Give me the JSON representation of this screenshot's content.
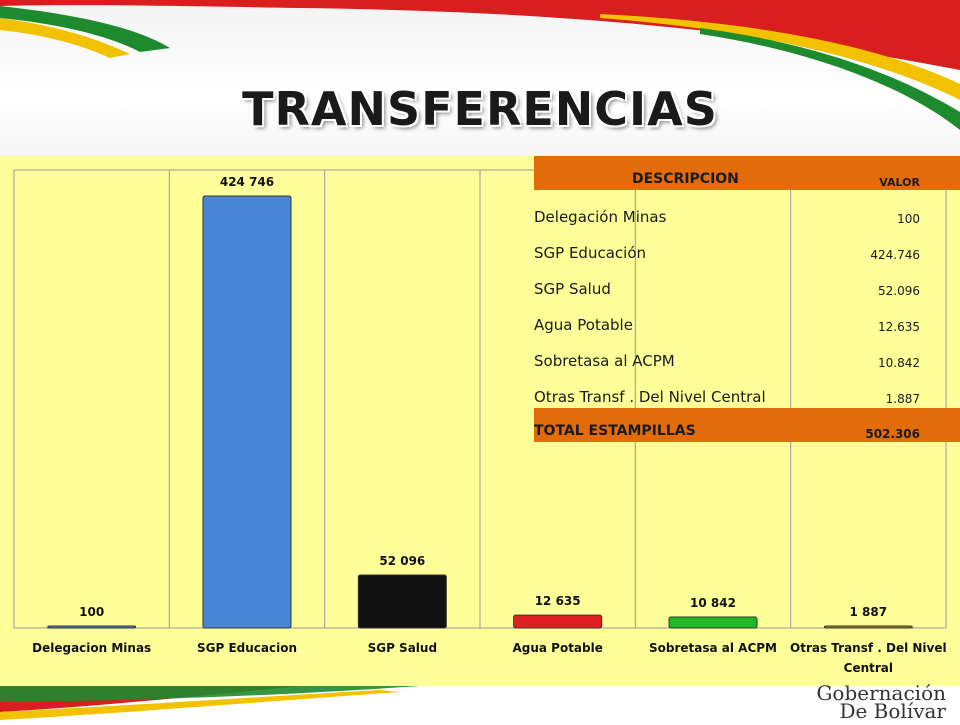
{
  "title": "TRANSFERENCIAS",
  "branding": {
    "line1": "Gobernación",
    "line2": "De Bolívar"
  },
  "colors": {
    "background": "#ffff99",
    "header": "#e36c0a"
  },
  "chart_data": {
    "type": "bar",
    "title": "",
    "categories": [
      "Delegacion Minas",
      "SGP Educacion",
      "SGP Salud",
      "Agua Potable",
      "Sobretasa al ACPM",
      "Otras Transf . Del Nivel Central"
    ],
    "values": [
      100,
      424746,
      52096,
      12635,
      10842,
      1887
    ],
    "data_labels": [
      "100",
      "424 746",
      "52 096",
      "12 635",
      "10 842",
      "1 887"
    ],
    "bar_colors": [
      "#4a86d6",
      "#4a86d6",
      "#111111",
      "#e02020",
      "#22b822",
      "#b8860b"
    ],
    "xlabel": "",
    "ylabel": "",
    "ylim": [
      0,
      450000
    ],
    "grid": false,
    "legend": "none"
  },
  "table": {
    "header_desc": "DESCRIPCION",
    "header_value": "VALOR",
    "rows": [
      {
        "desc": "Delegación Minas",
        "value": "100"
      },
      {
        "desc": "SGP Educación",
        "value": "424.746"
      },
      {
        "desc": "SGP Salud",
        "value": "52.096"
      },
      {
        "desc": "Agua Potable",
        "value": "12.635"
      },
      {
        "desc": "Sobretasa al ACPM",
        "value": "10.842"
      },
      {
        "desc": "Otras Transf . Del Nivel Central",
        "value": "1.887"
      }
    ],
    "total_desc": "TOTAL ESTAMPILLAS",
    "total_value": "502.306"
  }
}
